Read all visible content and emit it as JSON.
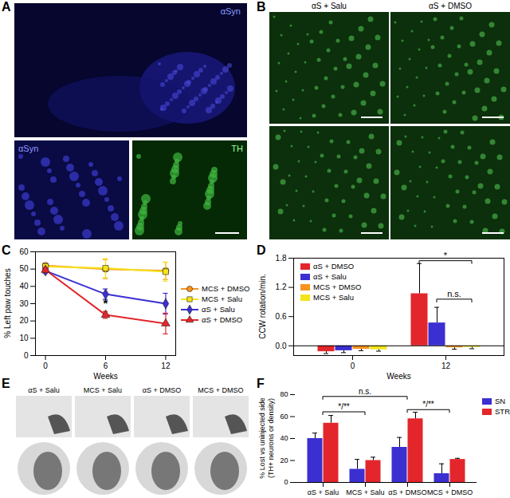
{
  "chart_data": [
    {
      "panel": "C",
      "type": "line",
      "x_label": "Weeks",
      "x": [
        0,
        6,
        12
      ],
      "xlim": [
        -1,
        13
      ],
      "xticks": [
        0,
        6,
        12
      ],
      "y_label": "% Left paw touches",
      "ylim": [
        0,
        60
      ],
      "yticks": [
        0,
        10,
        20,
        30,
        40,
        50,
        60
      ],
      "legend": "right",
      "series": [
        {
          "name": "MCS + DMSO",
          "color": "#f7931e",
          "marker": "circle",
          "values": [
            52,
            50,
            49
          ],
          "error": [
            1.5,
            5.5,
            5
          ]
        },
        {
          "name": "MCS + Salu",
          "color": "#f5e31b",
          "marker": "square",
          "values": [
            51.5,
            50.5,
            48.5
          ],
          "error": [
            1.5,
            5.5,
            5.5
          ]
        },
        {
          "name": "αS + Salu",
          "color": "#3b2fd1",
          "marker": "diamond",
          "values": [
            49,
            35.5,
            30
          ],
          "error": [
            1.5,
            3,
            6
          ]
        },
        {
          "name": "αS + DMSO",
          "color": "#e3262b",
          "marker": "triangle",
          "values": [
            49.5,
            23.5,
            18.5
          ],
          "error": [
            1.5,
            2,
            6
          ]
        }
      ],
      "annotations": [
        {
          "text": "*",
          "x": 6,
          "y": 30
        }
      ]
    },
    {
      "panel": "D",
      "type": "bar",
      "x_label": "Weeks",
      "categories": [
        "0",
        "12"
      ],
      "y_label": "CCW rotation/min.",
      "ylim": [
        -0.2,
        1.8
      ],
      "yticks": [
        {
          "value": 0,
          "label": "0.0"
        },
        0.6,
        1.2,
        1.8
      ],
      "legend": "top-left",
      "series": [
        {
          "name": "αS + DMSO",
          "color": "#e3262b",
          "values": [
            -0.12,
            1.07
          ],
          "error": [
            0.04,
            0.62
          ]
        },
        {
          "name": "αS + Salu",
          "color": "#3b2fd1",
          "values": [
            -0.1,
            0.47
          ],
          "error": [
            0.04,
            0.32
          ]
        },
        {
          "name": "MCS + DMSO",
          "color": "#f7931e",
          "values": [
            -0.07,
            -0.04
          ],
          "error": [
            0.03,
            0.03
          ]
        },
        {
          "name": "MCS + Salu",
          "color": "#f5e31b",
          "values": [
            -0.08,
            -0.03
          ],
          "error": [
            0.03,
            0.03
          ]
        }
      ],
      "annotations": [
        {
          "text": "*",
          "category": "12",
          "series": [
            "αS + DMSO",
            "MCS + Salu"
          ],
          "y": 1.74
        },
        {
          "text": "n.s.",
          "category": "12",
          "series": [
            "αS + Salu",
            "MCS + Salu"
          ],
          "y": 0.95
        }
      ]
    },
    {
      "panel": "F",
      "type": "bar",
      "categories": [
        "αS + Salu",
        "MCS + Salu",
        "αS + DMSO",
        "MCS + DMSO"
      ],
      "y_label": [
        "% Lost vs uninjected side",
        "(TH+ neurons or density)"
      ],
      "ylim": [
        0,
        80
      ],
      "yticks": [
        0,
        20,
        40,
        60,
        80
      ],
      "legend": "top-right",
      "series": [
        {
          "name": "SN",
          "color": "#3b2fd1",
          "values": [
            40,
            12,
            32,
            8
          ],
          "error": [
            5,
            9,
            9,
            9
          ]
        },
        {
          "name": "STR",
          "color": "#e3262b",
          "values": [
            54,
            20,
            58,
            21
          ],
          "error": [
            7,
            3,
            6,
            1
          ]
        }
      ],
      "annotations": [
        {
          "text": "*/**",
          "categories": [
            "αS + Salu",
            "MCS + Salu"
          ],
          "y": 64
        },
        {
          "text": "*/**",
          "categories": [
            "αS + DMSO",
            "MCS + DMSO"
          ],
          "y": 66
        },
        {
          "text": "n.s.",
          "categories": [
            "αS + Salu",
            "αS + DMSO"
          ],
          "y": 78
        }
      ]
    }
  ],
  "panels": {
    "A": {
      "panel": "A",
      "labels": [
        "αSyn",
        "αSyn",
        "TH"
      ]
    },
    "B": {
      "panel": "B",
      "columns": [
        "αS + Salu",
        "αS + DMSO"
      ]
    },
    "E": {
      "panel": "E",
      "columns": [
        "αS + Salu",
        "MCS + Salu",
        "αS + DMSO",
        "MCS + DMSO"
      ]
    }
  }
}
